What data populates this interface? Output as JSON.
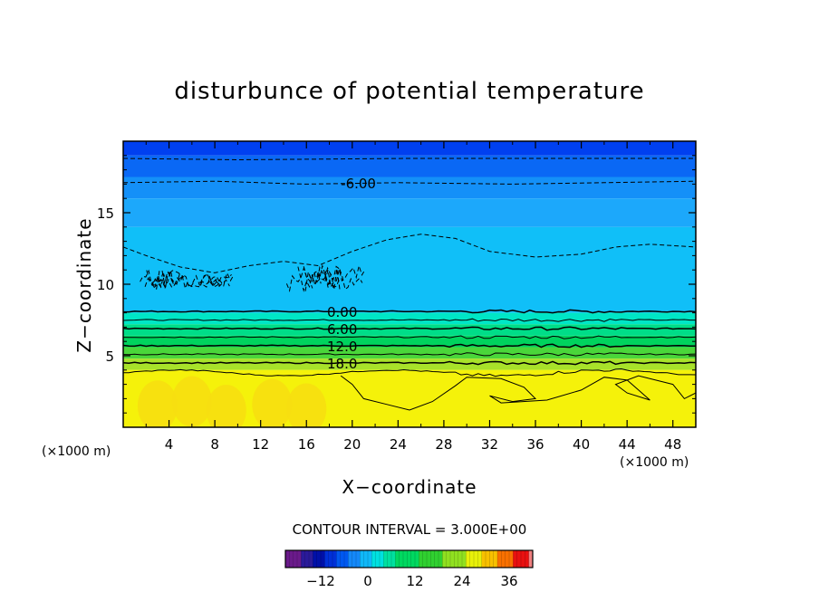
{
  "chart_data": {
    "type": "contour",
    "title": "disturbunce of potential temperature",
    "xlabel": "X−coordinate",
    "ylabel": "Z−coordinate",
    "x_unit": "(×1000 m)",
    "y_unit": "(×1000 m)",
    "xlim": [
      0,
      50
    ],
    "ylim": [
      0,
      20
    ],
    "x_ticks": [
      4,
      8,
      12,
      16,
      20,
      24,
      28,
      32,
      36,
      40,
      44,
      48
    ],
    "y_ticks": [
      5,
      10,
      15
    ],
    "contour_interval_text": "CONTOUR INTERVAL = 3.000E+00",
    "contour_interval": 3.0,
    "colorbar_range": [
      -21,
      42
    ],
    "colorbar_ticks": [
      "−12",
      "0",
      "12",
      "24",
      "36"
    ],
    "contour_labels": [
      {
        "text": "-6.00",
        "x": 19,
        "z": 17.1
      },
      {
        "text": "0.00",
        "x": 17.8,
        "z": 8.1
      },
      {
        "text": "6.00",
        "x": 17.8,
        "z": 6.9
      },
      {
        "text": "12.0",
        "x": 17.8,
        "z": 5.7
      },
      {
        "text": "18.0",
        "x": 17.8,
        "z": 4.5
      }
    ],
    "field_bands": [
      {
        "z_top": 20.0,
        "value": -12,
        "color": "#0040f0"
      },
      {
        "z_top": 19.0,
        "value": -9,
        "color": "#0a68f5"
      },
      {
        "z_top": 17.5,
        "value": -6,
        "color": "#1490f8"
      },
      {
        "z_top": 16.0,
        "value": -4,
        "color": "#1ca8fb"
      },
      {
        "z_top": 14.0,
        "value": -2,
        "color": "#10bff8"
      },
      {
        "z_top": 8.0,
        "value": 3,
        "color": "#00e6c6"
      },
      {
        "z_top": 7.2,
        "value": 7,
        "color": "#00dd88"
      },
      {
        "z_top": 6.4,
        "value": 12,
        "color": "#00d35e"
      },
      {
        "z_top": 5.6,
        "value": 16,
        "color": "#4ad63a"
      },
      {
        "z_top": 4.8,
        "value": 20,
        "color": "#a8e22a"
      },
      {
        "z_top": 4.0,
        "value": 24,
        "color": "#ecf40c"
      }
    ],
    "grid": false
  }
}
